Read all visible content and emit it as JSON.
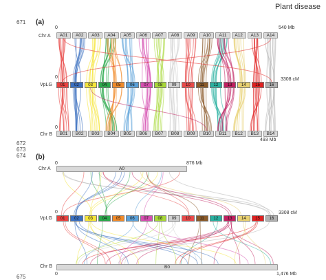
{
  "header": {
    "journal": "Plant disease"
  },
  "line_numbers": {
    "l671": "671",
    "l672": "672",
    "l673": "673",
    "l674": "674",
    "l675": "675"
  },
  "panel_a": {
    "label": "(a)",
    "chrA_label": "Chr A",
    "vplg_label": "VpLG",
    "chrB_label": "Chr B",
    "top_axis_zero": "0",
    "top_axis_end": "540 Mb",
    "mid_axis_zero": "0",
    "mid_axis_end": "3308 cM",
    "bottom_axis_zero": "0",
    "bottom_axis_end": "493 Mb",
    "chrA": [
      "A01",
      "A02",
      "A03",
      "A04",
      "A05",
      "A06",
      "A07",
      "A08",
      "A09",
      "A10",
      "A11",
      "A12",
      "A13",
      "A14"
    ],
    "lg": [
      "01",
      "02",
      "03",
      "04",
      "05",
      "06",
      "07",
      "08",
      "09",
      "10",
      "11",
      "12",
      "13",
      "14",
      "15",
      "16"
    ],
    "chrB": [
      "B01",
      "B02",
      "B03",
      "B04",
      "B05",
      "B06",
      "B07",
      "B08",
      "B09",
      "B10",
      "B11",
      "B12",
      "B13",
      "B14"
    ]
  },
  "panel_b": {
    "label": "(b)",
    "chrA_label": "Chr A",
    "vplg_label": "VpLG",
    "chrB_label": "Chr B",
    "top_axis_zero": "0",
    "top_axis_end": "876 Mb",
    "mid_axis_zero": "0",
    "mid_axis_end": "3308 cM",
    "bottom_axis_zero": "0",
    "bottom_axis_end": "1,476 Mb",
    "chrA": "A0",
    "chrB": "B0",
    "lg": [
      "01",
      "02",
      "03",
      "04",
      "05",
      "06",
      "07",
      "08",
      "09",
      "10",
      "11",
      "12",
      "13",
      "14",
      "15",
      "16"
    ]
  },
  "colors": {
    "lg": [
      "#e8413f",
      "#3a6fc0",
      "#f5e53a",
      "#2aa84a",
      "#f08a2a",
      "#5aa0d8",
      "#d64fb0",
      "#a8d838",
      "#d0d0d0",
      "#e84a4a",
      "#8a5a2a",
      "#2ab0a0",
      "#c02060",
      "#e8d070",
      "#e02020",
      "#b0b0b0"
    ]
  }
}
